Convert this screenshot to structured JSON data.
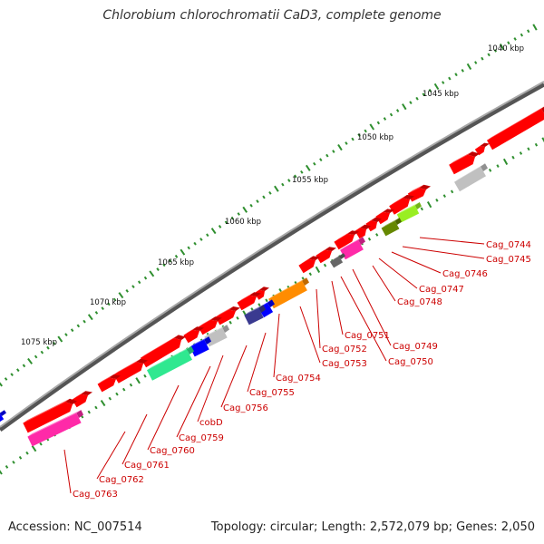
{
  "title": "Chlorobium chlorochromatii CaD3, complete genome",
  "accession": "Accession: NC_007514",
  "topology": "Topology: circular; Length: 2,572,079 bp; Genes: 2,050",
  "colors": {
    "tick": "#2f8f2f",
    "label": "#cc0000",
    "gene_red": "#ff0000",
    "magenta": "#ff2aa8",
    "orange": "#ff8c00",
    "green": "#2fe890",
    "blue": "#0000ff",
    "navy": "#3a3a90",
    "grey": "#c0c0c0",
    "olive": "#668800",
    "lime": "#99ee22",
    "dark_grey": "#666666"
  },
  "scale_labels": [
    "1040 kbp",
    "1045 kbp",
    "1050 kbp",
    "1055 kbp",
    "1060 kbp",
    "1065 kbp",
    "1070 kbp",
    "1075 kbp"
  ],
  "genes": [
    {
      "label": "Cag_0744"
    },
    {
      "label": "Cag_0745"
    },
    {
      "label": "Cag_0746"
    },
    {
      "label": "Cag_0747"
    },
    {
      "label": "Cag_0748"
    },
    {
      "label": "Cag_0749"
    },
    {
      "label": "Cag_0750"
    },
    {
      "label": "Cag_0751"
    },
    {
      "label": "Cag_0752"
    },
    {
      "label": "Cag_0753"
    },
    {
      "label": "Cag_0754"
    },
    {
      "label": "Cag_0755"
    },
    {
      "label": "Cag_0756"
    },
    {
      "label": "cobD"
    },
    {
      "label": "Cag_0759"
    },
    {
      "label": "Cag_0760"
    },
    {
      "label": "Cag_0761"
    },
    {
      "label": "Cag_0762"
    },
    {
      "label": "Cag_0763"
    }
  ]
}
